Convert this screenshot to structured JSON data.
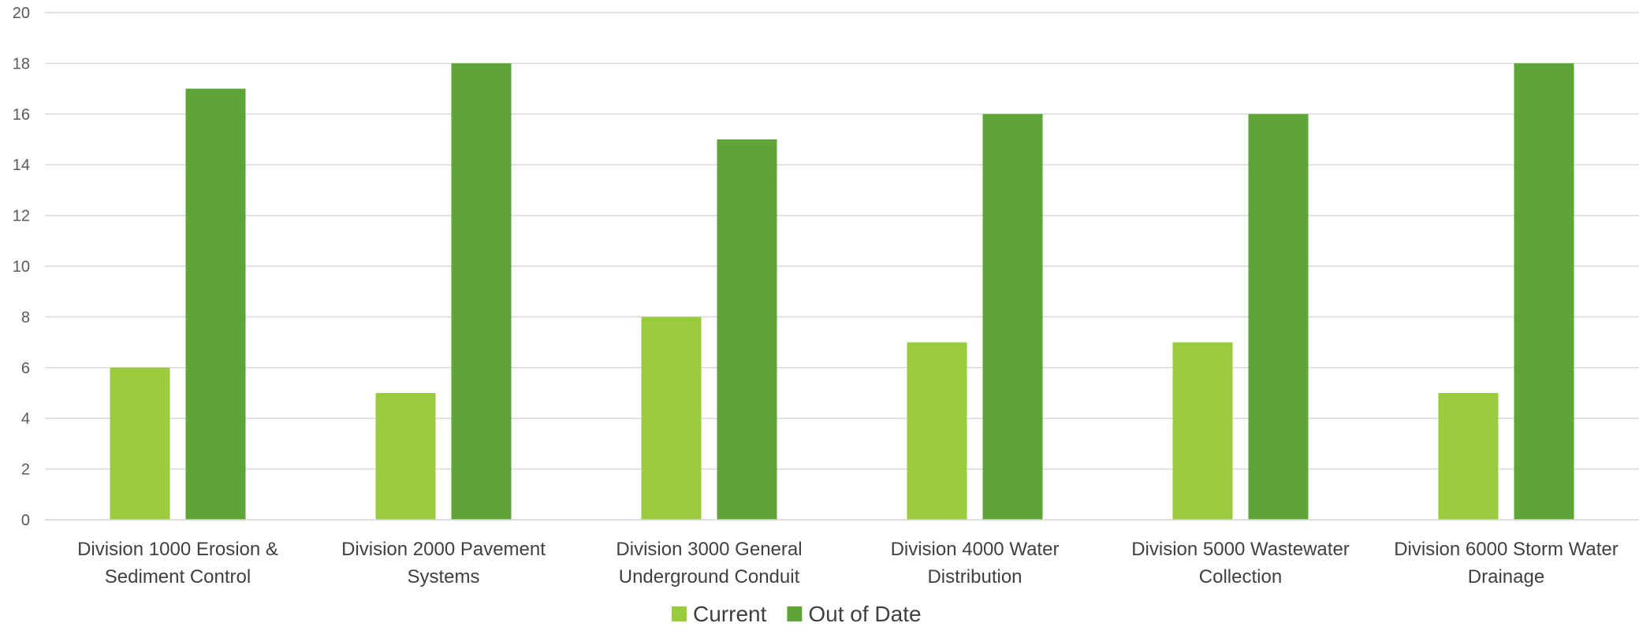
{
  "chart_data": {
    "type": "bar",
    "categories": [
      [
        "Division 1000 Erosion &",
        "Sediment Control"
      ],
      [
        "Division 2000 Pavement",
        "Systems"
      ],
      [
        "Division 3000 General",
        "Underground Conduit"
      ],
      [
        "Division 4000 Water",
        "Distribution"
      ],
      [
        "Division 5000 Wastewater",
        "Collection"
      ],
      [
        "Division 6000 Storm Water",
        "Drainage"
      ]
    ],
    "series": [
      {
        "name": "Current",
        "color": "#9ACB3C",
        "values": [
          6,
          5,
          8,
          7,
          7,
          5
        ]
      },
      {
        "name": "Out of Date",
        "color": "#5FA437",
        "values": [
          17,
          18,
          15,
          16,
          16,
          18
        ]
      }
    ],
    "ylim": [
      0,
      20
    ],
    "yticks": [
      0,
      2,
      4,
      6,
      8,
      10,
      12,
      14,
      16,
      18,
      20
    ],
    "grid": true,
    "legend": "bottom"
  }
}
